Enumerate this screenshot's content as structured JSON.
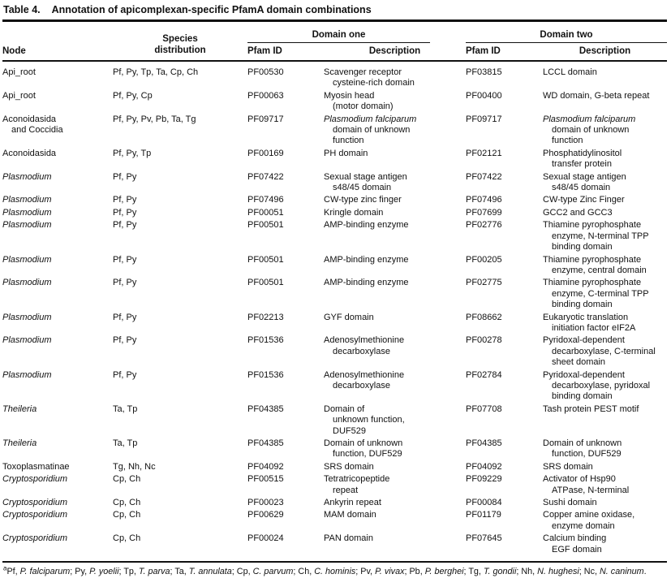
{
  "title": {
    "label": "Table 4.",
    "text": "Annotation of apicomplexan-specific PfamA domain combinations"
  },
  "header": {
    "node": "Node",
    "species": "Species\ndistribution",
    "domain_one": "Domain one",
    "domain_two": "Domain two",
    "pfam_id": "Pfam ID",
    "description": "Description"
  },
  "rows": [
    {
      "node": "Api_root",
      "species": "Pf, Py, Tp, Ta, Cp, Ch",
      "d1_id": "PF00530",
      "d1_desc": "Scavenger receptor\ncysteine-rich domain",
      "d2_id": "PF03815",
      "d2_desc": "LCCL domain"
    },
    {
      "node": "Api_root",
      "species": "Pf, Py, Cp",
      "d1_id": "PF00063",
      "d1_desc": "Myosin head\n(motor domain)",
      "d2_id": "PF00400",
      "d2_desc": "WD domain, G-beta repeat"
    },
    {
      "node": "Aconoidasida\nand Coccidia",
      "species": "Pf, Py, Pv, Pb, Ta, Tg",
      "d1_id": "PF09717",
      "d1_desc": "*Plasmodium falciparum*\ndomain of unknown\nfunction",
      "d2_id": "PF09717",
      "d2_desc": "*Plasmodium falciparum*\ndomain of unknown\nfunction"
    },
    {
      "node": "Aconoidasida",
      "species": "Pf, Py, Tp",
      "d1_id": "PF00169",
      "d1_desc": "PH domain",
      "d2_id": "PF02121",
      "d2_desc": "Phosphatidylinositol\ntransfer protein"
    },
    {
      "node": "*Plasmodium*",
      "species": "Pf, Py",
      "d1_id": "PF07422",
      "d1_desc": "Sexual stage antigen\ns48/45 domain",
      "d2_id": "PF07422",
      "d2_desc": "Sexual stage antigen\ns48/45 domain"
    },
    {
      "node": "*Plasmodium*",
      "species": "Pf, Py",
      "d1_id": "PF07496",
      "d1_desc": "CW-type zinc finger",
      "d2_id": "PF07496",
      "d2_desc": "CW-type Zinc Finger"
    },
    {
      "node": "*Plasmodium*",
      "species": "Pf, Py",
      "d1_id": "PF00051",
      "d1_desc": "Kringle domain",
      "d2_id": "PF07699",
      "d2_desc": "GCC2 and GCC3"
    },
    {
      "node": "*Plasmodium*",
      "species": "Pf, Py",
      "d1_id": "PF00501",
      "d1_desc": "AMP-binding enzyme",
      "d2_id": "PF02776",
      "d2_desc": "Thiamine pyrophosphate\nenzyme, N-terminal TPP\nbinding domain"
    },
    {
      "node": "*Plasmodium*",
      "species": "Pf, Py",
      "d1_id": "PF00501",
      "d1_desc": "AMP-binding enzyme",
      "d2_id": "PF00205",
      "d2_desc": "Thiamine pyrophosphate\nenzyme, central domain"
    },
    {
      "node": "*Plasmodium*",
      "species": "Pf, Py",
      "d1_id": "PF00501",
      "d1_desc": "AMP-binding enzyme",
      "d2_id": "PF02775",
      "d2_desc": "Thiamine pyrophosphate\nenzyme, C-terminal TPP\nbinding domain"
    },
    {
      "node": "*Plasmodium*",
      "species": "Pf, Py",
      "d1_id": "PF02213",
      "d1_desc": "GYF domain",
      "d2_id": "PF08662",
      "d2_desc": "Eukaryotic translation\ninitiation factor eIF2A"
    },
    {
      "node": "*Plasmodium*",
      "species": "Pf, Py",
      "d1_id": "PF01536",
      "d1_desc": "Adenosylmethionine\ndecarboxylase",
      "d2_id": "PF00278",
      "d2_desc": "Pyridoxal-dependent\ndecarboxylase, C-terminal\nsheet domain"
    },
    {
      "node": "*Plasmodium*",
      "species": "Pf, Py",
      "d1_id": "PF01536",
      "d1_desc": "Adenosylmethionine\ndecarboxylase",
      "d2_id": "PF02784",
      "d2_desc": "Pyridoxal-dependent\ndecarboxylase, pyridoxal\nbinding domain"
    },
    {
      "node": "*Theileria*",
      "species": "Ta, Tp",
      "d1_id": "PF04385",
      "d1_desc": "Domain of\nunknown function,\nDUF529",
      "d2_id": "PF07708",
      "d2_desc": "Tash protein PEST motif"
    },
    {
      "node": "*Theileria*",
      "species": "Ta, Tp",
      "d1_id": "PF04385",
      "d1_desc": "Domain of unknown\nfunction, DUF529",
      "d2_id": "PF04385",
      "d2_desc": "Domain of unknown\nfunction, DUF529"
    },
    {
      "node": "Toxoplasmatinae",
      "species": "Tg, Nh, Nc",
      "d1_id": "PF04092",
      "d1_desc": "SRS domain",
      "d2_id": "PF04092",
      "d2_desc": "SRS domain"
    },
    {
      "node": "*Cryptosporidium*",
      "species": "Cp, Ch",
      "d1_id": "PF00515",
      "d1_desc": "Tetratricopeptide\nrepeat",
      "d2_id": "PF09229",
      "d2_desc": "Activator of Hsp90\nATPase, N-terminal"
    },
    {
      "node": "*Cryptosporidium*",
      "species": "Cp, Ch",
      "d1_id": "PF00023",
      "d1_desc": "Ankyrin repeat",
      "d2_id": "PF00084",
      "d2_desc": "Sushi domain"
    },
    {
      "node": "*Cryptosporidium*",
      "species": "Cp, Ch",
      "d1_id": "PF00629",
      "d1_desc": "MAM domain",
      "d2_id": "PF01179",
      "d2_desc": "Copper amine oxidase,\nenzyme domain"
    },
    {
      "node": "*Cryptosporidium*",
      "species": "Cp, Ch",
      "d1_id": "PF00024",
      "d1_desc": "PAN domain",
      "d2_id": "PF07645",
      "d2_desc": "Calcium binding\nEGF domain"
    }
  ],
  "footnote": {
    "marker": "a",
    "text": "Pf, *P. falciparum*; Py, *P. yoelii*; Tp, *T. parva*; Ta, *T. annulata*; Cp, *C. parvum*; Ch, *C. hominis*; Pv, *P. vivax*; Pb, *P. berghei*; Tg, *T. gondii*; Nh, *N. hughesi*; Nc, *N. caninum*."
  }
}
